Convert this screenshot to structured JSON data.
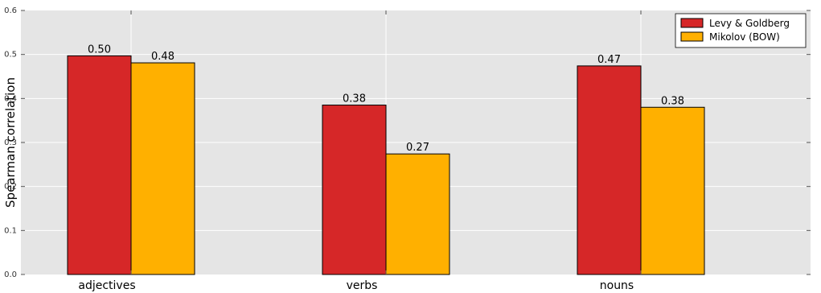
{
  "chart_data": {
    "type": "bar",
    "title": "",
    "xlabel": "",
    "ylabel": "Spearman correlation",
    "ylim": [
      0,
      0.6
    ],
    "yticks": [
      0.0,
      0.1,
      0.2,
      0.3,
      0.4,
      0.5,
      0.6
    ],
    "ytick_labels": [
      "0.0",
      "0.1",
      "0.2",
      "0.3",
      "0.4",
      "0.5",
      "0.6"
    ],
    "categories": [
      "adjectives",
      "verbs",
      "nouns"
    ],
    "series": [
      {
        "name": "Levy & Goldberg",
        "color": "#d62728",
        "values": [
          0.497,
          0.385,
          0.474
        ],
        "labels": [
          "0.50",
          "0.38",
          "0.47"
        ]
      },
      {
        "name": "Mikolov (BOW)",
        "color": "#ffb000",
        "values": [
          0.481,
          0.274,
          0.38
        ],
        "labels": [
          "0.48",
          "0.27",
          "0.38"
        ]
      }
    ],
    "grid": true,
    "background": "#e5e5e5",
    "legend_position": "top-right"
  }
}
